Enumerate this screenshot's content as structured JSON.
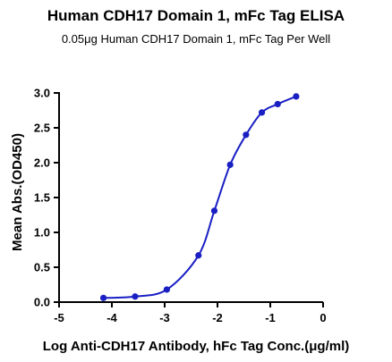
{
  "chart_data": {
    "type": "scatter",
    "title": "Human CDH17 Domain 1, mFc Tag ELISA",
    "subtitle": "0.05μg Human CDH17 Domain 1, mFc Tag Per Well",
    "xlabel": "Log Anti-CDH17 Antibody, hFc Tag Conc.(μg/ml)",
    "ylabel": "Mean Abs.(OD450)",
    "xlim": [
      -5,
      0
    ],
    "ylim": [
      0,
      3.0
    ],
    "x_ticks": [
      "-5",
      "-4",
      "-3",
      "-2",
      "-1",
      "0"
    ],
    "y_ticks": [
      "0.0",
      "0.5",
      "1.0",
      "1.5",
      "2.0",
      "2.5",
      "3.0"
    ],
    "grid": false,
    "color": "#1a1fc4",
    "fit": "sigmoidal 4PL curve",
    "points": [
      {
        "x": -4.16,
        "y": 0.06
      },
      {
        "x": -3.56,
        "y": 0.08
      },
      {
        "x": -2.96,
        "y": 0.18
      },
      {
        "x": -2.36,
        "y": 0.67
      },
      {
        "x": -2.06,
        "y": 1.31
      },
      {
        "x": -1.76,
        "y": 1.97
      },
      {
        "x": -1.46,
        "y": 2.4
      },
      {
        "x": -1.16,
        "y": 2.72
      },
      {
        "x": -0.86,
        "y": 2.84
      },
      {
        "x": -0.51,
        "y": 2.95
      }
    ]
  }
}
